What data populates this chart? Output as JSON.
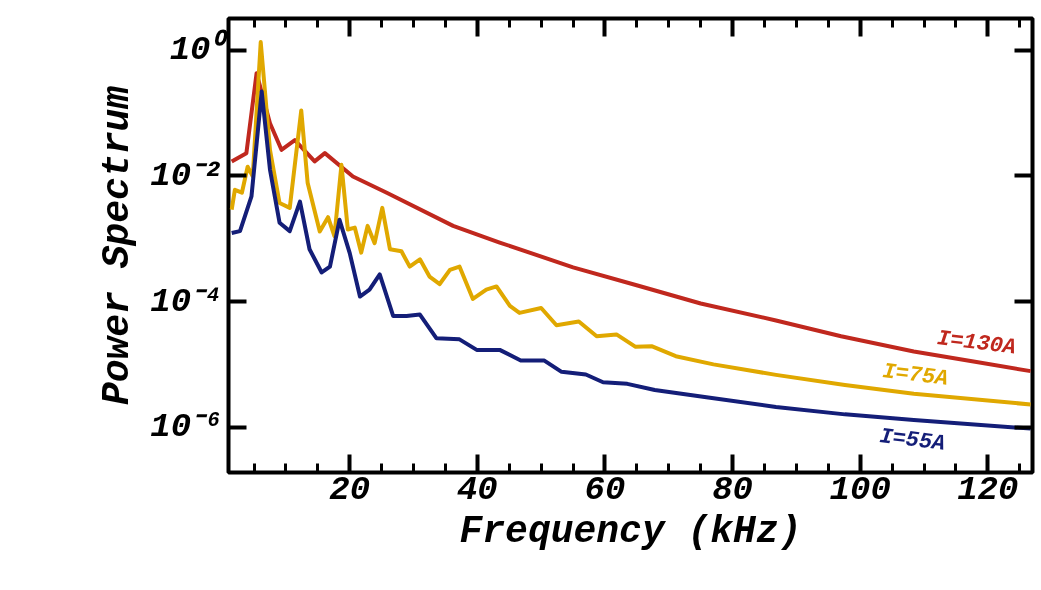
{
  "chart_data": {
    "type": "line",
    "xlabel": "Frequency (kHz)",
    "ylabel": "Power Spectrum",
    "log": "y",
    "grid": false,
    "legend": false,
    "marker": "none",
    "line_style": "solid",
    "xlim": [
      1,
      127
    ],
    "xticks": [
      20,
      40,
      60,
      80,
      100,
      120
    ],
    "ylim": [
      1.9e-07,
      3.2
    ],
    "yticks": [
      {
        "value": 1,
        "label": "10⁰"
      },
      {
        "value": 0.01,
        "label": "10⁻²"
      },
      {
        "value": 0.0001,
        "label": "10⁻⁴"
      },
      {
        "value": 1e-06,
        "label": "10⁻⁶"
      }
    ],
    "series": [
      {
        "name": "I=130A",
        "color": "#c0281e",
        "x": [
          1.5,
          3.8,
          5.4,
          7.5,
          9.3,
          11.4,
          14.5,
          16.1,
          20.5,
          25.8,
          36.2,
          43.5,
          55,
          65.1,
          75,
          86.8,
          97,
          108.4,
          118,
          126.7
        ],
        "values": [
          0.017,
          0.023,
          0.43,
          0.069,
          0.026,
          0.037,
          0.017,
          0.023,
          0.0098,
          0.0054,
          0.0016,
          0.00087,
          0.00035,
          0.00018,
          9.3e-05,
          5e-05,
          2.8e-05,
          1.6e-05,
          1.1e-05,
          7.8e-06
        ]
      },
      {
        "name": "I=75A",
        "color": "#e0a800",
        "x": [
          1.5,
          2,
          3.1,
          4,
          4.8,
          6.05,
          7.5,
          9,
          10.6,
          12.4,
          13.4,
          15.3,
          16.6,
          17.6,
          18.7,
          19.7,
          20.8,
          21.8,
          22.8,
          23.9,
          25.1,
          26.3,
          28.1,
          29.4,
          31,
          32.5,
          34.1,
          35.7,
          37.2,
          39.3,
          41.4,
          43,
          45.1,
          46.6,
          50,
          52.4,
          55.9,
          58.7,
          61.8,
          64.8,
          67.3,
          71.1,
          77,
          86.8,
          97.6,
          108.4,
          126.7
        ],
        "values": [
          0.0029,
          0.006,
          0.0054,
          0.014,
          0.0098,
          1.35,
          0.026,
          0.0037,
          0.0031,
          0.11,
          0.0078,
          0.0013,
          0.0022,
          0.0011,
          0.015,
          0.0014,
          0.0015,
          0.0006,
          0.0016,
          0.00085,
          0.0031,
          0.00068,
          0.00063,
          0.00036,
          0.00047,
          0.00025,
          0.00019,
          0.00032,
          0.00036,
          0.00011,
          0.000155,
          0.000174,
          8.5e-05,
          6.6e-05,
          7.9e-05,
          4.2e-05,
          4.8e-05,
          2.8e-05,
          3e-05,
          1.9e-05,
          1.95e-05,
          1.35e-05,
          1e-05,
          6.8e-06,
          4.7e-06,
          3.4e-06,
          2.3e-06
        ]
      },
      {
        "name": "I=55A",
        "color": "#141e78",
        "x": [
          1.5,
          2.8,
          4.6,
          6.2,
          7.5,
          9,
          10.6,
          12.2,
          13.7,
          15.6,
          16.9,
          18.4,
          20,
          21.6,
          23.1,
          24.7,
          26.8,
          28.9,
          31,
          33.6,
          37.2,
          39.9,
          43.5,
          46.8,
          50.5,
          53.2,
          57,
          59.7,
          63.5,
          67.8,
          75.9,
          86.8,
          97.6,
          108.4,
          126.7
        ],
        "values": [
          0.00123,
          0.00132,
          0.0047,
          0.22,
          0.0126,
          0.0018,
          0.00132,
          0.0039,
          0.00068,
          0.00029,
          0.00036,
          0.002,
          0.00059,
          0.00012,
          0.000155,
          0.00027,
          5.9e-05,
          5.9e-05,
          6.2e-05,
          2.6e-05,
          2.5e-05,
          1.7e-05,
          1.7e-05,
          1.15e-05,
          1.15e-05,
          7.6e-06,
          6.9e-06,
          5.2e-06,
          4.9e-06,
          3.9e-06,
          3e-06,
          2.1e-06,
          1.6e-06,
          1.3e-06,
          9.5e-07
        ]
      }
    ]
  }
}
